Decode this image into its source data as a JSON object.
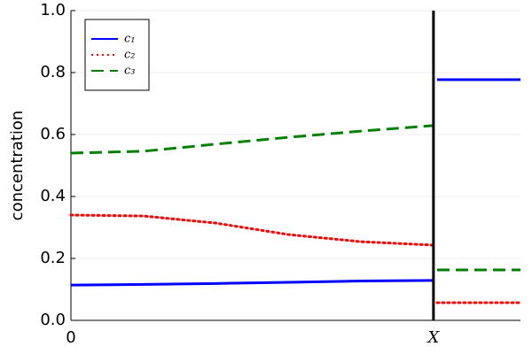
{
  "chart_data": {
    "type": "line",
    "y_label": "concentration",
    "x": [
      0,
      0.2,
      0.4,
      0.6,
      0.8,
      1,
      1.005,
      1.01,
      1.24
    ],
    "series": [
      {
        "name": "c₁",
        "color": "#0000ff",
        "dash": "solid",
        "values": [
          0.114,
          0.116,
          0.119,
          0.123,
          0.127,
          0.129,
          null,
          0.777,
          0.777
        ]
      },
      {
        "name": "c₂",
        "color": "#ff0000",
        "dash": "dotted",
        "values": [
          0.34,
          0.337,
          0.314,
          0.277,
          0.254,
          0.243,
          null,
          0.057,
          0.057
        ]
      },
      {
        "name": "c₃",
        "color": "#008000",
        "dash": "dashed",
        "values": [
          0.54,
          0.546,
          0.569,
          0.591,
          0.611,
          0.629,
          null,
          0.163,
          0.163
        ]
      }
    ],
    "vline": 1,
    "xlim": [
      0,
      1.24
    ],
    "xticks": [
      0,
      {
        "value": 1,
        "label": "X"
      }
    ],
    "ylim": [
      0,
      1
    ],
    "yticks": [
      {
        "value": 0,
        "label": "0.0"
      },
      0.2,
      0.4,
      0.6,
      0.8,
      {
        "value": 1,
        "label": "1.0"
      }
    ],
    "grid": true,
    "legend": "top-left"
  }
}
